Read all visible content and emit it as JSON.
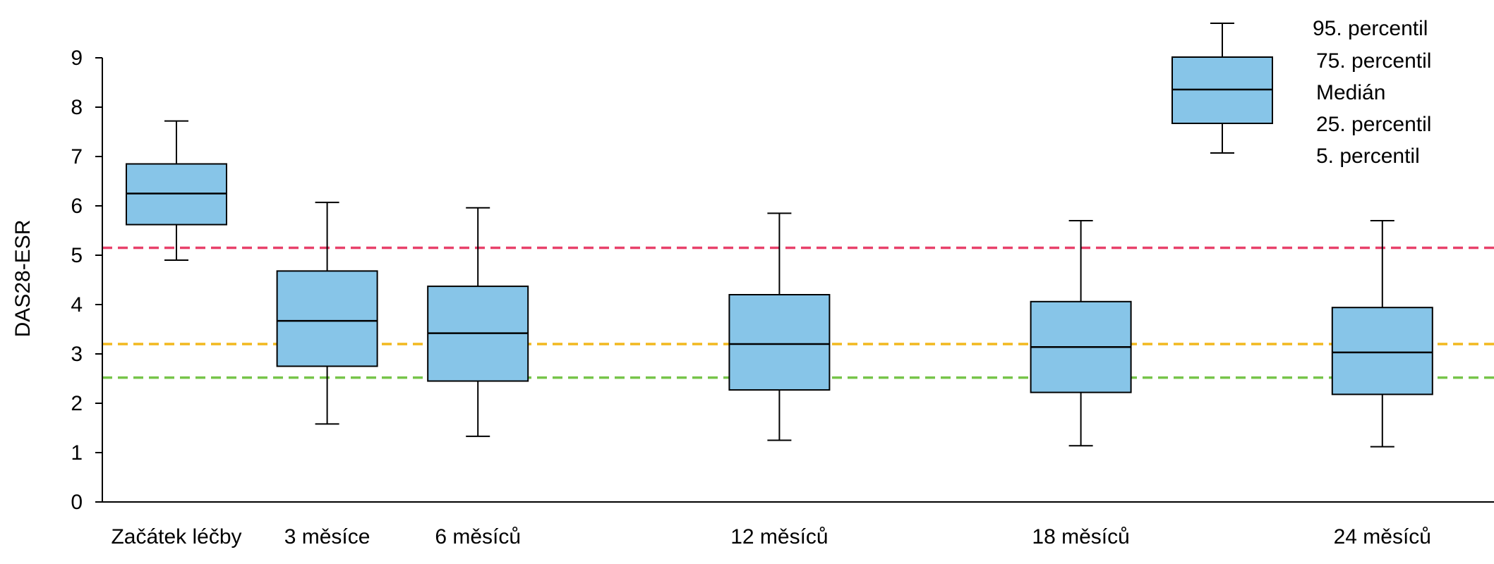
{
  "chart_data": {
    "type": "boxplot",
    "ylabel": "DAS28-ESR",
    "ylim": [
      0,
      9
    ],
    "yticks": [
      "0",
      "1",
      "2",
      "3",
      "4",
      "5",
      "6",
      "7",
      "8",
      "9"
    ],
    "categories": [
      "Začátek léčby",
      "3 měsíce",
      "6 měsíců",
      "12 měsíců",
      "18 měsíců",
      "24 měsíců"
    ],
    "x_positions_months": [
      0,
      3,
      6,
      12,
      18,
      24
    ],
    "boxes": [
      {
        "p5": 4.9,
        "p25": 5.62,
        "median": 6.25,
        "p75": 6.85,
        "p95": 7.72
      },
      {
        "p5": 1.58,
        "p25": 2.75,
        "median": 3.67,
        "p75": 4.68,
        "p95": 6.07
      },
      {
        "p5": 1.33,
        "p25": 2.45,
        "median": 3.42,
        "p75": 4.37,
        "p95": 5.96
      },
      {
        "p5": 1.25,
        "p25": 2.27,
        "median": 3.2,
        "p75": 4.2,
        "p95": 5.85
      },
      {
        "p5": 1.14,
        "p25": 2.22,
        "median": 3.14,
        "p75": 4.06,
        "p95": 5.7
      },
      {
        "p5": 1.12,
        "p25": 2.18,
        "median": 3.03,
        "p75": 3.94,
        "p95": 5.7
      }
    ],
    "reference_lines": [
      {
        "value": 5.15,
        "color": "#e8416a"
      },
      {
        "value": 3.2,
        "color": "#f2b81e"
      },
      {
        "value": 2.52,
        "color": "#76c44a"
      }
    ],
    "legend": {
      "placement": "top-right",
      "labels": [
        "95. percentil",
        "75. percentil",
        "Medián",
        "25. percentil",
        "5. percentil"
      ]
    },
    "box_fill": "#87c5e8",
    "grid": false
  }
}
